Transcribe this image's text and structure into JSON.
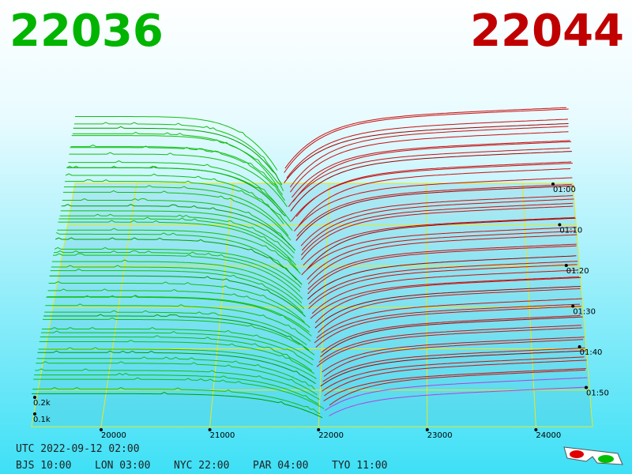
{
  "header": {
    "bid": "22036",
    "ask": "22044"
  },
  "price_ticks": [
    "20000",
    "21000",
    "22000",
    "23000",
    "24000"
  ],
  "time_ticks": [
    "01:00",
    "01:10",
    "01:20",
    "01:30",
    "01:40",
    "01:50"
  ],
  "volume_ticks": [
    "0.2k",
    "0.1k"
  ],
  "footer": {
    "utc": "UTC 2022-09-12 02:00",
    "zones": [
      "BJS 10:00",
      "LON 03:00",
      "NYC 22:00",
      "PAR 04:00",
      "TYO 11:00"
    ]
  }
}
